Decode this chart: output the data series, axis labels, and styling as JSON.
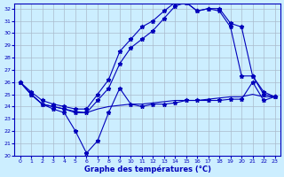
{
  "xlabel": "Graphe des températures (°C)",
  "bg_color": "#cceeff",
  "grid_color": "#aabbcc",
  "line_color": "#0000bb",
  "xlim": [
    -0.5,
    23.5
  ],
  "ylim": [
    20,
    32.4
  ],
  "xticks": [
    0,
    1,
    2,
    3,
    4,
    5,
    6,
    7,
    8,
    9,
    10,
    11,
    12,
    13,
    14,
    15,
    16,
    17,
    18,
    19,
    20,
    21,
    22,
    23
  ],
  "yticks": [
    20,
    21,
    22,
    23,
    24,
    25,
    26,
    27,
    28,
    29,
    30,
    31,
    32
  ],
  "series_flat_x": [
    0,
    1,
    2,
    3,
    4,
    5,
    6,
    7,
    8,
    9,
    10,
    11,
    12,
    13,
    14,
    15,
    16,
    17,
    18,
    19,
    20,
    21,
    22,
    23
  ],
  "series_flat_y": [
    26.0,
    25.0,
    24.2,
    24.0,
    23.8,
    23.6,
    23.5,
    23.8,
    24.0,
    24.1,
    24.2,
    24.2,
    24.3,
    24.4,
    24.5,
    24.5,
    24.5,
    24.6,
    24.7,
    24.8,
    24.8,
    25.0,
    24.8,
    24.8
  ],
  "series_low_x": [
    0,
    1,
    2,
    3,
    4,
    5,
    6,
    7,
    8,
    9,
    10,
    11,
    12,
    13,
    14,
    15,
    16,
    17,
    18,
    19,
    20,
    21,
    22,
    23
  ],
  "series_low_y": [
    26.0,
    25.0,
    24.2,
    23.8,
    23.5,
    22.0,
    20.2,
    21.2,
    23.5,
    25.5,
    24.2,
    24.0,
    24.2,
    24.2,
    24.3,
    24.5,
    24.5,
    24.5,
    24.5,
    24.6,
    24.6,
    26.0,
    24.5,
    24.8
  ],
  "series_mid_x": [
    0,
    1,
    2,
    3,
    4,
    5,
    6,
    7,
    8,
    9,
    10,
    11,
    12,
    13,
    14,
    15,
    16,
    17,
    18,
    19,
    20,
    21,
    22,
    23
  ],
  "series_mid_y": [
    26.0,
    25.0,
    24.2,
    24.0,
    23.8,
    23.5,
    23.5,
    24.5,
    25.5,
    27.5,
    28.8,
    29.5,
    30.2,
    31.2,
    32.2,
    32.5,
    31.8,
    32.0,
    31.8,
    30.5,
    26.5,
    26.5,
    25.0,
    24.8
  ],
  "series_top_x": [
    0,
    1,
    2,
    3,
    4,
    5,
    6,
    7,
    8,
    9,
    10,
    11,
    12,
    13,
    14,
    15,
    16,
    17,
    18,
    19,
    20,
    21,
    22,
    23
  ],
  "series_top_y": [
    26.0,
    25.2,
    24.5,
    24.2,
    24.0,
    23.8,
    23.8,
    25.0,
    26.2,
    28.5,
    29.5,
    30.5,
    31.0,
    31.8,
    32.5,
    32.5,
    31.8,
    32.0,
    32.0,
    30.8,
    30.5,
    26.5,
    25.2,
    24.8
  ]
}
